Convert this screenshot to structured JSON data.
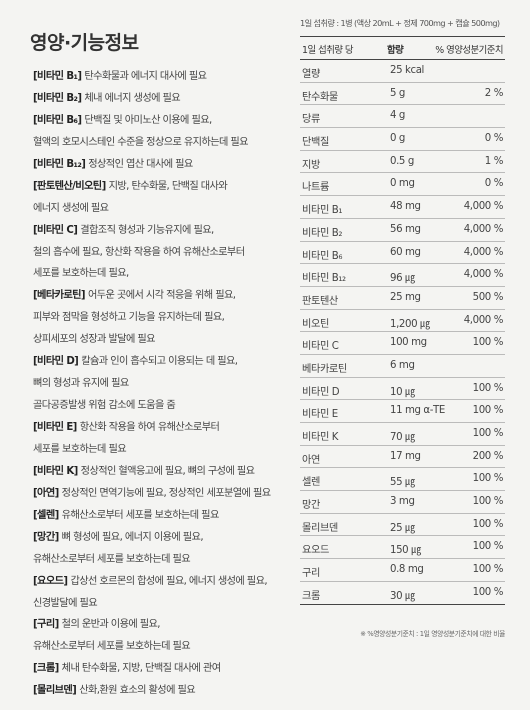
{
  "title": "영양·기능정보",
  "functional_lines": [
    {
      "tag": "[비타민 B₁]",
      "text": "탄수화물과 에너지 대사에 필요"
    },
    {
      "tag": "[비타민 B₂]",
      "text": "체내 에너지 생성에 필요"
    },
    {
      "tag": "[비타민 B₆]",
      "text": "단백질 및 아미노산 이용에 필요,"
    },
    {
      "tag": "",
      "text": "혈액의 호모시스테인 수준을 정상으로 유지하는데 필요"
    },
    {
      "tag": "[비타민 B₁₂]",
      "text": "정상적인 엽산 대사에 필요"
    },
    {
      "tag": "[판토텐산/비오틴]",
      "text": "지방, 탄수화물, 단백질 대사와"
    },
    {
      "tag": "",
      "text": "에너지 생성에 필요"
    },
    {
      "tag": "[비타민 C]",
      "text": "결합조직 형성과 기능유지에 필요,"
    },
    {
      "tag": "",
      "text": "철의 흡수에 필요, 항산화 작용을 하여 유해산소로부터"
    },
    {
      "tag": "",
      "text": "세포를 보호하는데 필요,"
    },
    {
      "tag": "[베타카로틴]",
      "text": "어두운 곳에서 시각 적응을 위해 필요,"
    },
    {
      "tag": "",
      "text": "피부와 점막을 형성하고 기능을 유지하는데 필요,"
    },
    {
      "tag": "",
      "text": "상피세포의 성장과 발달에 필요"
    },
    {
      "tag": "[비타민 D]",
      "text": "칼슘과 인이 흡수되고 이용되는 데 필요,"
    },
    {
      "tag": "",
      "text": "뼈의 형성과 유지에 필요"
    },
    {
      "tag": "",
      "text": "골다공증발생 위험 감소에 도움을 줌"
    },
    {
      "tag": "[비타민 E]",
      "text": "항산화 작용을 하여 유해산소로부터"
    },
    {
      "tag": "",
      "text": "세포를 보호하는데 필요"
    },
    {
      "tag": "[비타민 K]",
      "text": "정상적인 혈액응고에 필요, 뼈의 구성에 필요"
    },
    {
      "tag": "[아연]",
      "text": "정상적인 면역기능에 필요, 정상적인 세포분열에 필요"
    },
    {
      "tag": "[셀렌]",
      "text": "유해산소로부터 세포를 보호하는데 필요"
    },
    {
      "tag": "[망간]",
      "text": "뼈 형성에 필요, 에너지 이용에 필요,"
    },
    {
      "tag": "",
      "text": "유해산소로부터 세포를 보호하는데 필요"
    },
    {
      "tag": "[요오드]",
      "text": "갑상선 호르몬의 합성에 필요, 에너지 생성에 필요,"
    },
    {
      "tag": "",
      "text": "신경발달에 필요"
    },
    {
      "tag": "[구리]",
      "text": "철의 운반과 이용에 필요,"
    },
    {
      "tag": "",
      "text": "유해산소로부터 세포를 보호하는데 필요"
    },
    {
      "tag": "[크롬]",
      "text": "체내 탄수화물, 지방, 단백질 대사에 관여"
    },
    {
      "tag": "[몰리브덴]",
      "text": "산화,환원 효소의 활성에 필요"
    }
  ],
  "serving_info": "1일 섭취량 : 1병 (액상 20mL + 정제 700mg + 캡슐 500mg)",
  "table_header": {
    "col1": "1일 섭취량 당",
    "col2": "함량",
    "col3": "% 영양성분기준치"
  },
  "nutrients": [
    {
      "name": "열량",
      "amount": "25 kcal",
      "percent": ""
    },
    {
      "name": "탄수화물",
      "amount": "5 g",
      "percent": "2 %"
    },
    {
      "name": "당류",
      "amount": "4 g",
      "percent": ""
    },
    {
      "name": "단백질",
      "amount": "0 g",
      "percent": "0 %"
    },
    {
      "name": "지방",
      "amount": "0.5 g",
      "percent": "1 %"
    },
    {
      "name": "나트륨",
      "amount": "0 mg",
      "percent": "0 %"
    },
    {
      "name": "비타민 B₁",
      "amount": "48 mg",
      "percent": "4,000 %"
    },
    {
      "name": "비타민 B₂",
      "amount": "56 mg",
      "percent": "4,000 %"
    },
    {
      "name": "비타민 B₆",
      "amount": "60 mg",
      "percent": "4,000 %"
    },
    {
      "name": "비타민 B₁₂",
      "amount": "96 ㎍",
      "percent": "4,000 %"
    },
    {
      "name": "판토텐산",
      "amount": "25 mg",
      "percent": "500 %"
    },
    {
      "name": "비오틴",
      "amount": "1,200 ㎍",
      "percent": "4,000 %"
    },
    {
      "name": "비타민 C",
      "amount": "100 mg",
      "percent": "100 %"
    },
    {
      "name": "베타카로틴",
      "amount": "6 mg",
      "percent": ""
    },
    {
      "name": "비타민 D",
      "amount": "10 ㎍",
      "percent": "100 %"
    },
    {
      "name": "비타민 E",
      "amount": "11 mg α-TE",
      "percent": "100 %"
    },
    {
      "name": "비타민 K",
      "amount": "70 ㎍",
      "percent": "100 %"
    },
    {
      "name": "아연",
      "amount": "17 mg",
      "percent": "200 %"
    },
    {
      "name": "셀렌",
      "amount": "55 ㎍",
      "percent": "100 %"
    },
    {
      "name": "망간",
      "amount": "3 mg",
      "percent": "100 %"
    },
    {
      "name": "몰리브덴",
      "amount": "25 ㎍",
      "percent": "100 %"
    },
    {
      "name": "요오드",
      "amount": "150 ㎍",
      "percent": "100 %"
    },
    {
      "name": "구리",
      "amount": "0.8 mg",
      "percent": "100 %"
    },
    {
      "name": "크롬",
      "amount": "30 ㎍",
      "percent": "100 %"
    }
  ],
  "footnote": "※ %영양성분기준치 : 1일 영양성분기준치에 대한 비율"
}
